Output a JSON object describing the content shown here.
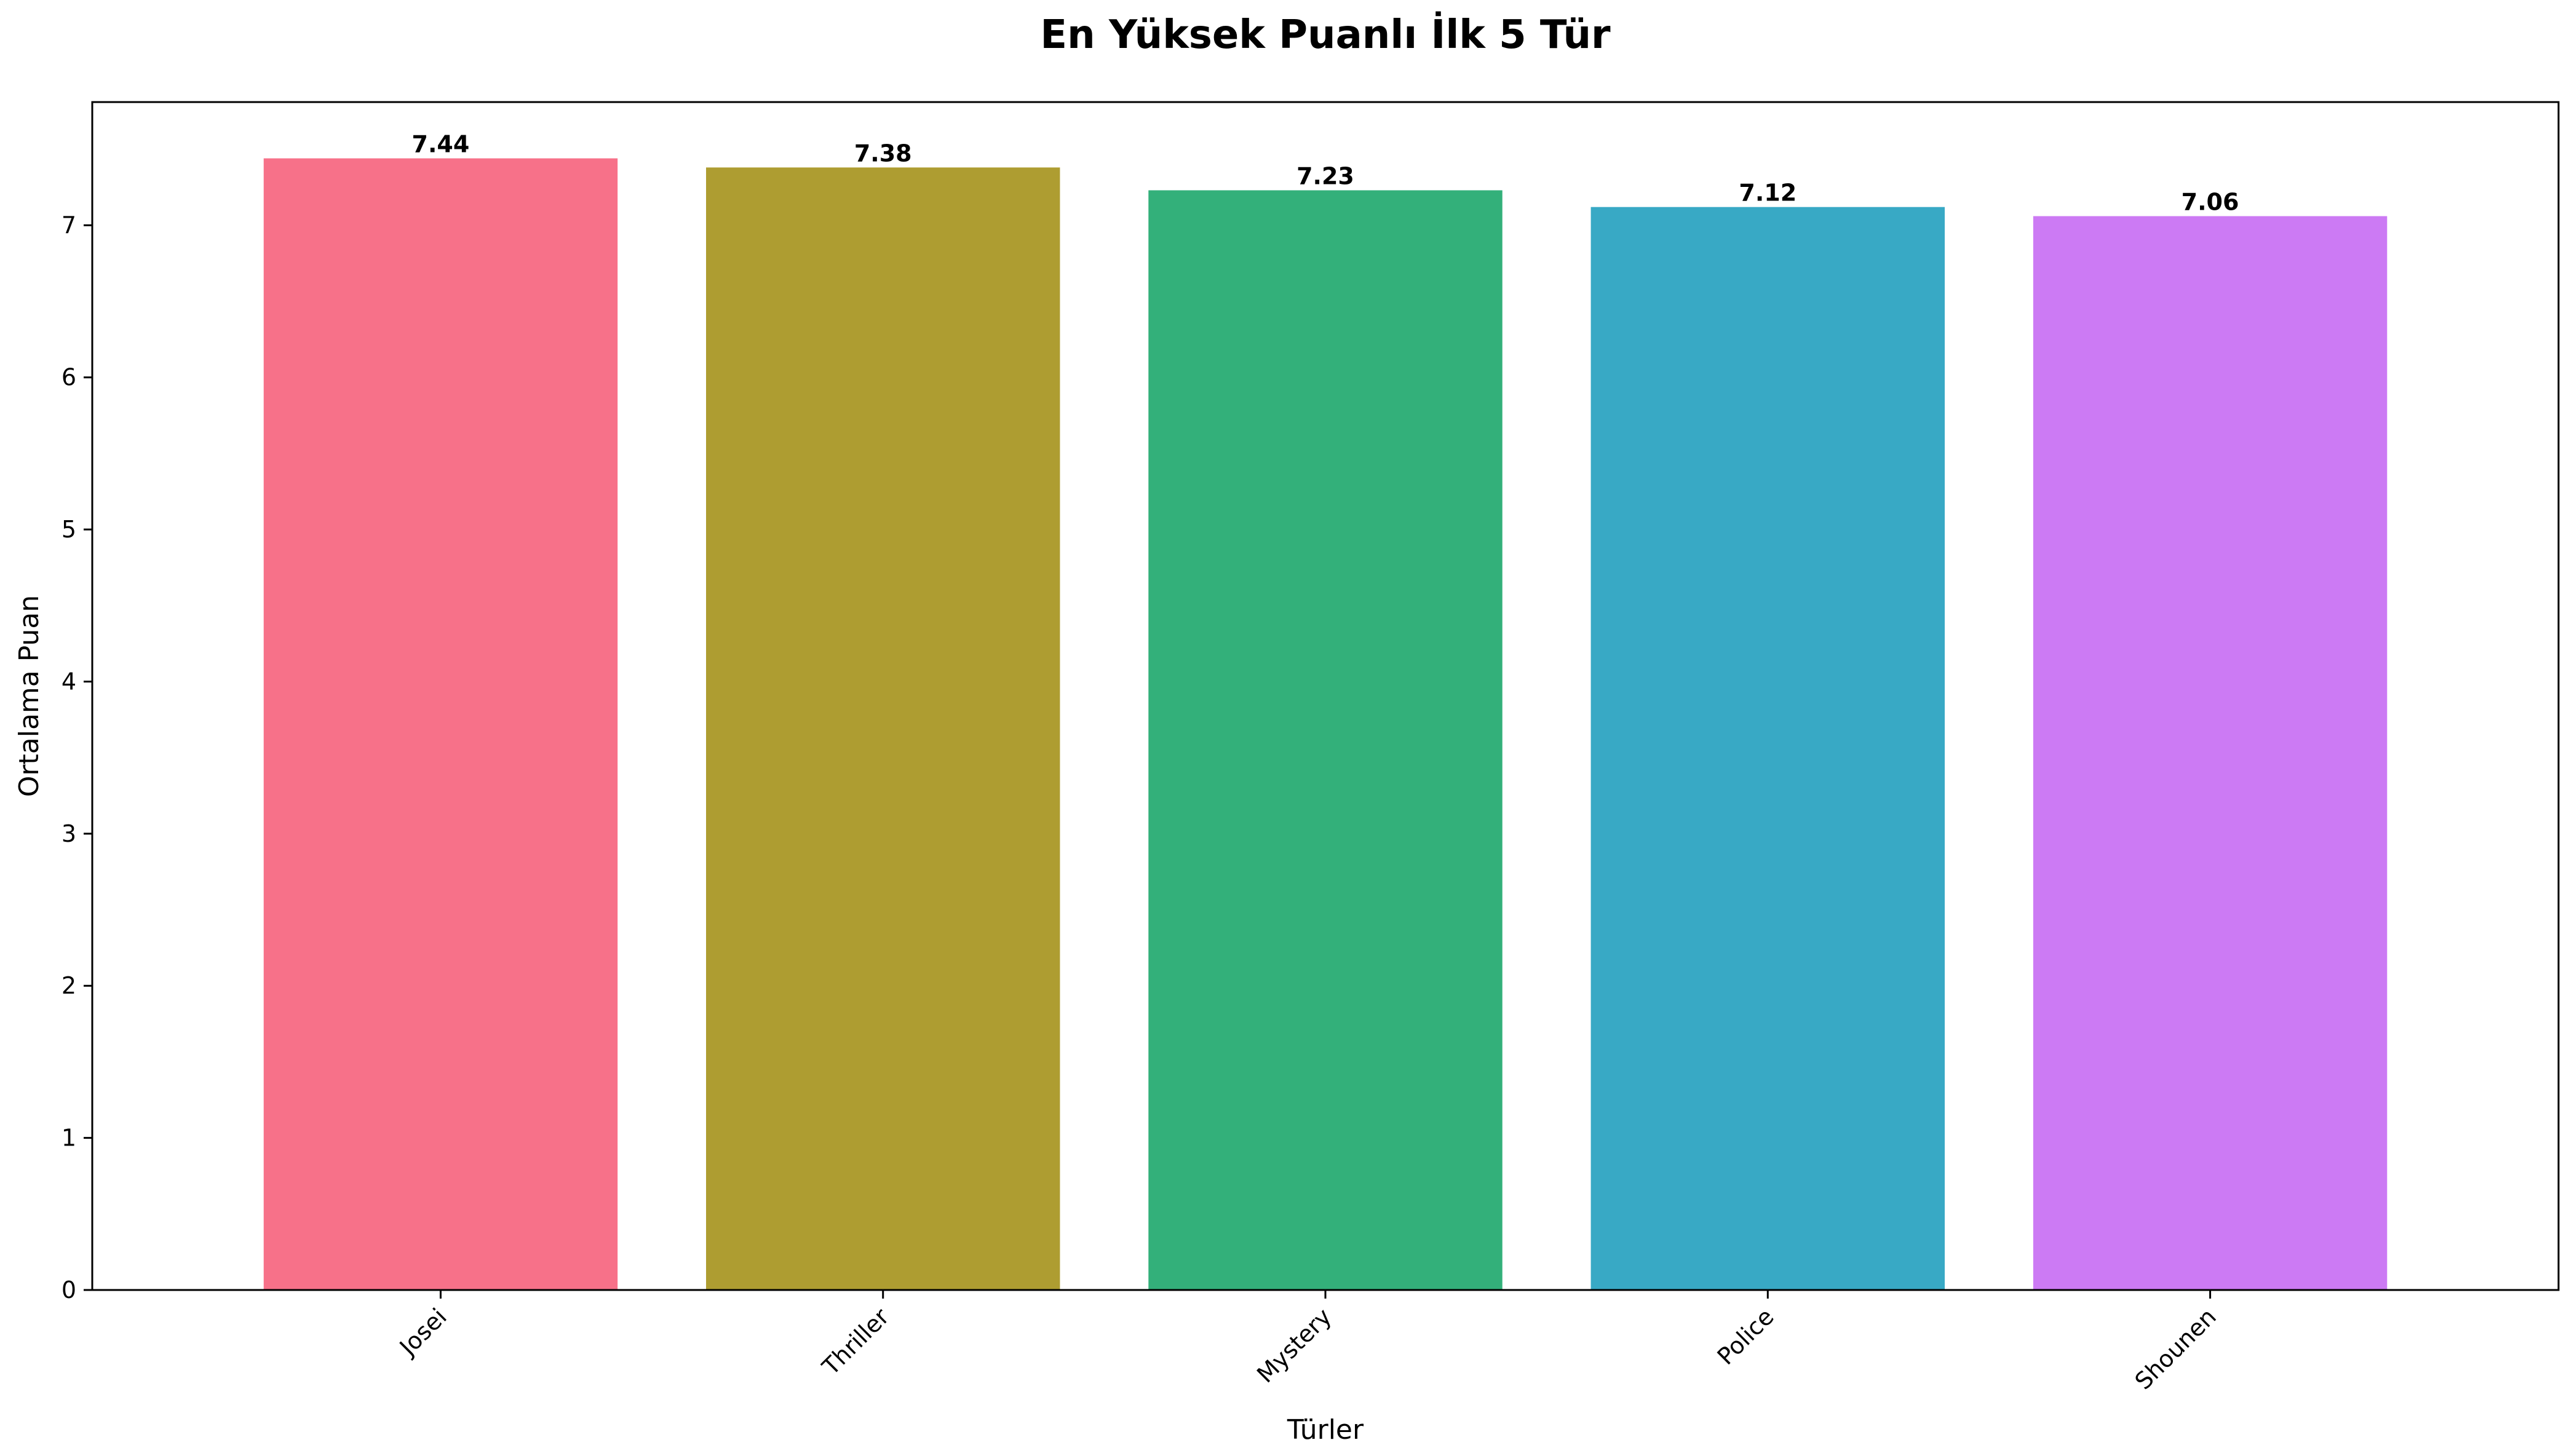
{
  "chart_data": {
    "type": "bar",
    "title": "En Yüksek Puanlı İlk 5 Tür",
    "xlabel": "Türler",
    "ylabel": "Ortalama Puan",
    "categories": [
      "Josei",
      "Thriller",
      "Mystery",
      "Police",
      "Shounen"
    ],
    "values": [
      7.44,
      7.38,
      7.23,
      7.12,
      7.06
    ],
    "value_labels": [
      "7.44",
      "7.38",
      "7.23",
      "7.12",
      "7.06"
    ],
    "colors": [
      "#f77189",
      "#ae9d31",
      "#33b07a",
      "#38a9c5",
      "#cc7af4"
    ],
    "ylim": [
      0,
      7.81
    ],
    "yticks": [
      0,
      1,
      2,
      3,
      4,
      5,
      6,
      7
    ],
    "grid": false,
    "legend": "none"
  }
}
